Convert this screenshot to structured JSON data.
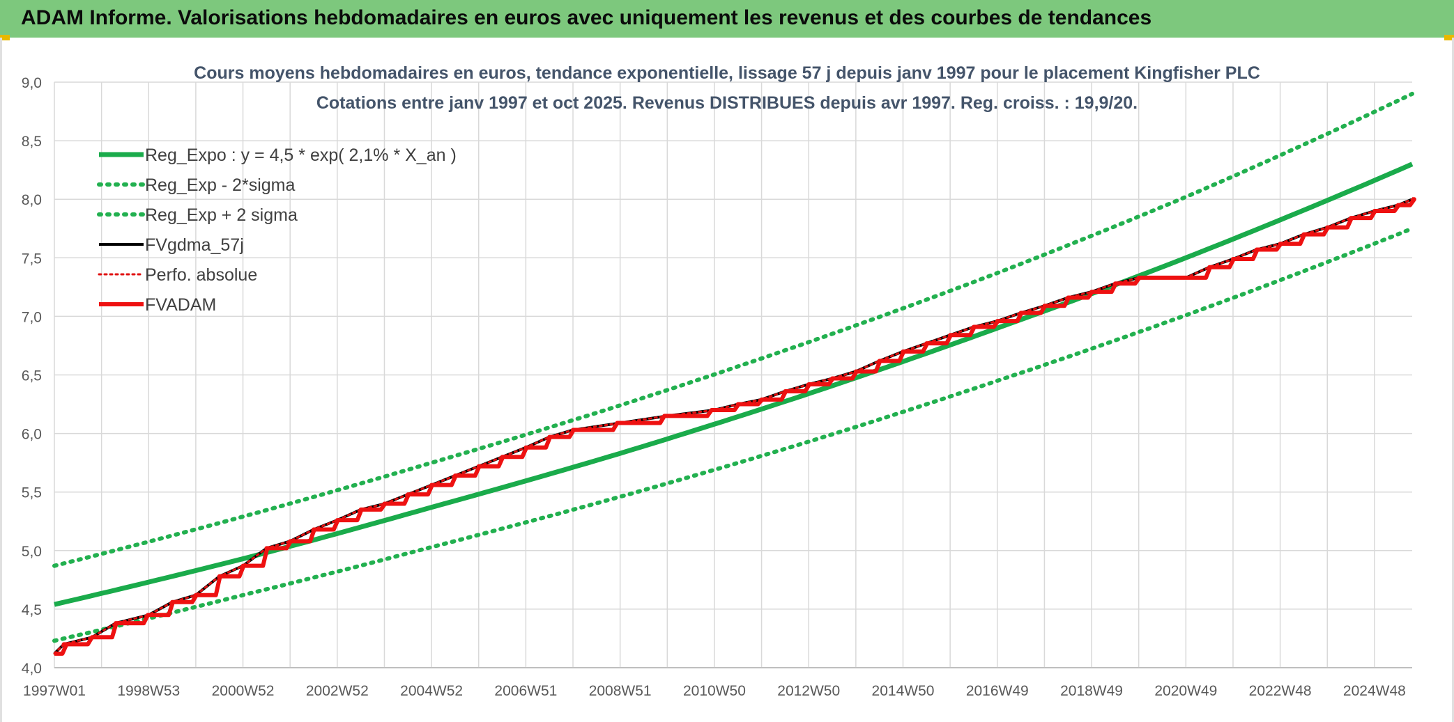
{
  "header": {
    "title": "ADAM Informe. Valorisations hebdomadaires en euros avec uniquement les revenus et des courbes de tendances"
  },
  "colors": {
    "header_bg": "#7dc87d",
    "reg_green": "#1aab4b",
    "reg_dotted": "#22b04f",
    "fvgdma": "#000000",
    "perfo": "#e01010",
    "fvadam": "#ee1111",
    "grid": "#d9d9d9"
  },
  "chart_data": {
    "type": "line",
    "title": "Cours moyens hebdomadaires en euros, tendance exponentielle, lissage 57 j depuis janv 1997 pour le placement Kingfisher PLC",
    "subtitle": "Cotations entre janv 1997 et oct 2025. Revenus DISTRIBUES depuis avr 1997. Reg. croiss. : 19,9/20.",
    "xlabel": "",
    "ylabel": "",
    "ylim": [
      4.0,
      9.0
    ],
    "yticks": [
      "4,0",
      "4,5",
      "5,0",
      "5,5",
      "6,0",
      "6,5",
      "7,0",
      "7,5",
      "8,0",
      "8,5",
      "9,0"
    ],
    "xlim": [
      1997.0,
      2025.8
    ],
    "xticks": [
      {
        "label": "1997W01",
        "year": 1997.0
      },
      {
        "label": "1998W53",
        "year": 1999.0
      },
      {
        "label": "2000W52",
        "year": 2001.0
      },
      {
        "label": "2002W52",
        "year": 2003.0
      },
      {
        "label": "2004W52",
        "year": 2005.0
      },
      {
        "label": "2006W51",
        "year": 2007.0
      },
      {
        "label": "2008W51",
        "year": 2009.0
      },
      {
        "label": "2010W50",
        "year": 2011.0
      },
      {
        "label": "2012W50",
        "year": 2013.0
      },
      {
        "label": "2014W50",
        "year": 2015.0
      },
      {
        "label": "2016W49",
        "year": 2017.0
      },
      {
        "label": "2018W49",
        "year": 2019.0
      },
      {
        "label": "2020W49",
        "year": 2021.0
      },
      {
        "label": "2022W48",
        "year": 2023.0
      },
      {
        "label": "2024W48",
        "year": 2025.0
      }
    ],
    "grid": true,
    "legend_position": "top-left",
    "series": [
      {
        "name": "Reg_Expo : y = 4,5 * exp( 2,1% *  X_an )",
        "style": "solid-green",
        "x": [
          1997.0,
          2001.0,
          2005.0,
          2009.0,
          2013.0,
          2017.0,
          2021.0,
          2025.8
        ],
        "y": [
          4.54,
          4.93,
          5.37,
          5.83,
          6.34,
          6.9,
          7.5,
          8.3
        ]
      },
      {
        "name": "Reg_Exp - 2*sigma",
        "style": "dotted-green",
        "x": [
          1997.0,
          2001.0,
          2005.0,
          2009.0,
          2013.0,
          2017.0,
          2021.0,
          2025.8
        ],
        "y": [
          4.23,
          4.62,
          5.03,
          5.46,
          5.93,
          6.45,
          7.01,
          7.75
        ]
      },
      {
        "name": "Reg_Exp + 2 sigma",
        "style": "dotted-green",
        "x": [
          1997.0,
          2001.0,
          2005.0,
          2009.0,
          2013.0,
          2017.0,
          2021.0,
          2025.8
        ],
        "y": [
          4.87,
          5.29,
          5.75,
          6.24,
          6.78,
          7.37,
          8.02,
          8.9
        ]
      },
      {
        "name": "FVgdma_57j",
        "style": "solid-black",
        "x": [
          1997.0,
          1997.2,
          1997.8,
          1998.3,
          1999.0,
          1999.5,
          2000.0,
          2000.5,
          2001.0,
          2001.5,
          2002.0,
          2002.5,
          2003.0,
          2003.5,
          2004.0,
          2004.5,
          2005.0,
          2005.5,
          2006.0,
          2006.5,
          2007.0,
          2007.5,
          2008.0,
          2009.0,
          2010.0,
          2011.0,
          2011.5,
          2012.0,
          2012.5,
          2013.0,
          2013.5,
          2014.0,
          2014.5,
          2015.0,
          2015.5,
          2016.0,
          2016.5,
          2017.0,
          2017.5,
          2018.0,
          2018.5,
          2019.0,
          2019.5,
          2020.0,
          2021.0,
          2021.5,
          2022.0,
          2022.5,
          2023.0,
          2023.5,
          2024.0,
          2024.5,
          2025.0,
          2025.5,
          2025.8
        ],
        "y": [
          4.12,
          4.2,
          4.26,
          4.38,
          4.45,
          4.56,
          4.62,
          4.78,
          4.87,
          5.02,
          5.08,
          5.18,
          5.26,
          5.35,
          5.4,
          5.48,
          5.56,
          5.64,
          5.72,
          5.8,
          5.88,
          5.97,
          6.03,
          6.09,
          6.15,
          6.2,
          6.25,
          6.29,
          6.36,
          6.42,
          6.47,
          6.53,
          6.62,
          6.7,
          6.77,
          6.84,
          6.91,
          6.96,
          7.03,
          7.09,
          7.16,
          7.21,
          7.28,
          7.33,
          7.33,
          7.42,
          7.49,
          7.57,
          7.62,
          7.7,
          7.76,
          7.84,
          7.9,
          7.95,
          8.0
        ]
      },
      {
        "name": "Perfo. absolue",
        "style": "dotted-red",
        "x": [
          1997.0,
          1997.2,
          1997.8,
          1998.3,
          1999.0,
          1999.5,
          2000.0,
          2000.5,
          2001.0,
          2001.5,
          2002.0,
          2002.5,
          2003.0,
          2003.5,
          2004.0,
          2004.5,
          2005.0,
          2005.5,
          2006.0,
          2006.5,
          2007.0,
          2007.5,
          2008.0,
          2009.0,
          2010.0,
          2011.0,
          2011.5,
          2012.0,
          2012.5,
          2013.0,
          2013.5,
          2014.0,
          2014.5,
          2015.0,
          2015.5,
          2016.0,
          2016.5,
          2017.0,
          2017.5,
          2018.0,
          2018.5,
          2019.0,
          2019.5,
          2020.0,
          2021.0,
          2021.5,
          2022.0,
          2022.5,
          2023.0,
          2023.5,
          2024.0,
          2024.5,
          2025.0,
          2025.5,
          2025.8
        ],
        "y": [
          4.12,
          4.2,
          4.26,
          4.38,
          4.45,
          4.56,
          4.62,
          4.78,
          4.87,
          5.02,
          5.08,
          5.18,
          5.26,
          5.35,
          5.4,
          5.48,
          5.56,
          5.64,
          5.72,
          5.8,
          5.88,
          5.97,
          6.03,
          6.09,
          6.15,
          6.2,
          6.25,
          6.29,
          6.36,
          6.42,
          6.47,
          6.53,
          6.62,
          6.7,
          6.77,
          6.84,
          6.91,
          6.96,
          7.03,
          7.09,
          7.16,
          7.21,
          7.28,
          7.33,
          7.33,
          7.42,
          7.49,
          7.57,
          7.62,
          7.7,
          7.76,
          7.84,
          7.9,
          7.95,
          8.0
        ]
      },
      {
        "name": "FVADAM",
        "style": "step-red",
        "x": [
          1997.0,
          1997.2,
          1997.8,
          1998.3,
          1999.0,
          1999.5,
          2000.0,
          2000.5,
          2001.0,
          2001.5,
          2002.0,
          2002.5,
          2003.0,
          2003.5,
          2004.0,
          2004.5,
          2005.0,
          2005.5,
          2006.0,
          2006.5,
          2007.0,
          2007.5,
          2008.0,
          2009.0,
          2010.0,
          2011.0,
          2011.5,
          2012.0,
          2012.5,
          2013.0,
          2013.5,
          2014.0,
          2014.5,
          2015.0,
          2015.5,
          2016.0,
          2016.5,
          2017.0,
          2017.5,
          2018.0,
          2018.5,
          2019.0,
          2019.5,
          2020.0,
          2021.0,
          2021.5,
          2022.0,
          2022.5,
          2023.0,
          2023.5,
          2024.0,
          2024.5,
          2025.0,
          2025.5,
          2025.8
        ],
        "y": [
          4.12,
          4.2,
          4.26,
          4.38,
          4.45,
          4.56,
          4.62,
          4.78,
          4.87,
          5.02,
          5.08,
          5.18,
          5.26,
          5.35,
          5.4,
          5.48,
          5.56,
          5.64,
          5.72,
          5.8,
          5.88,
          5.97,
          6.03,
          6.09,
          6.15,
          6.2,
          6.25,
          6.29,
          6.36,
          6.42,
          6.47,
          6.53,
          6.62,
          6.7,
          6.77,
          6.84,
          6.91,
          6.96,
          7.03,
          7.09,
          7.16,
          7.21,
          7.28,
          7.33,
          7.33,
          7.42,
          7.49,
          7.57,
          7.62,
          7.7,
          7.76,
          7.84,
          7.9,
          7.95,
          8.0
        ]
      }
    ]
  }
}
